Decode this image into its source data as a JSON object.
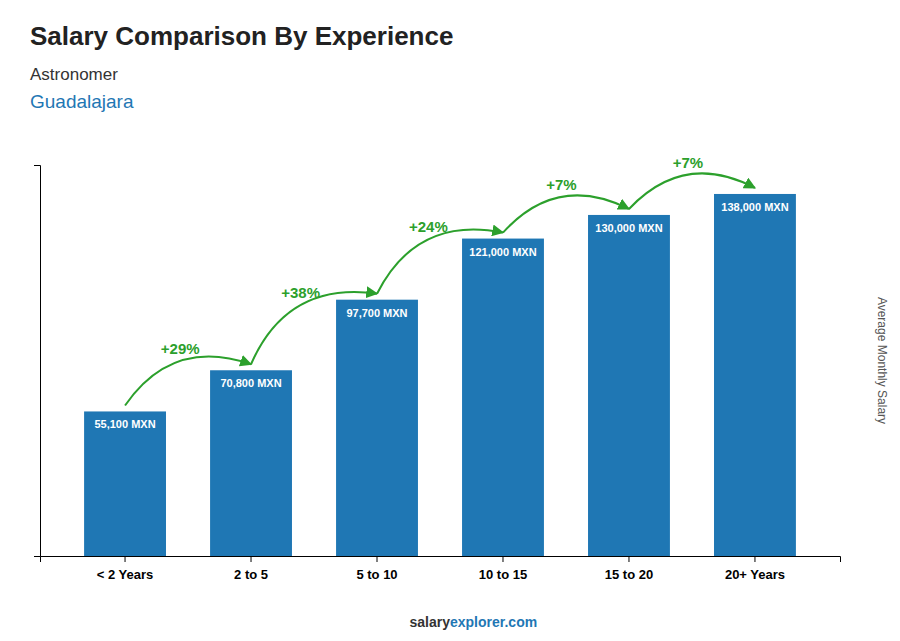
{
  "chart_data": {
    "type": "bar",
    "title": "Salary Comparison By Experience",
    "subtitle": [
      "Astronomer",
      "Guadalajara"
    ],
    "ylabel": "Average Monthly Salary",
    "footer": [
      "salary",
      "explorer.com"
    ],
    "categories": [
      "< 2 Years",
      "2 to 5",
      "5 to 10",
      "10 to 15",
      "15 to 20",
      "20+ Years"
    ],
    "values": [
      55100,
      70800,
      97700,
      121000,
      130000,
      138000
    ],
    "value_labels": [
      "55,100 MXN",
      "70,800 MXN",
      "97,700 MXN",
      "121,000 MXN",
      "130,000 MXN",
      "138,000 MXN"
    ],
    "data_labels": true,
    "annotations": [
      "+29%",
      "+38%",
      "+24%",
      "+7%",
      "+7%"
    ],
    "ylim": [
      0,
      149040
    ],
    "yticks": [],
    "tick_labels": "x",
    "grid": false
  }
}
